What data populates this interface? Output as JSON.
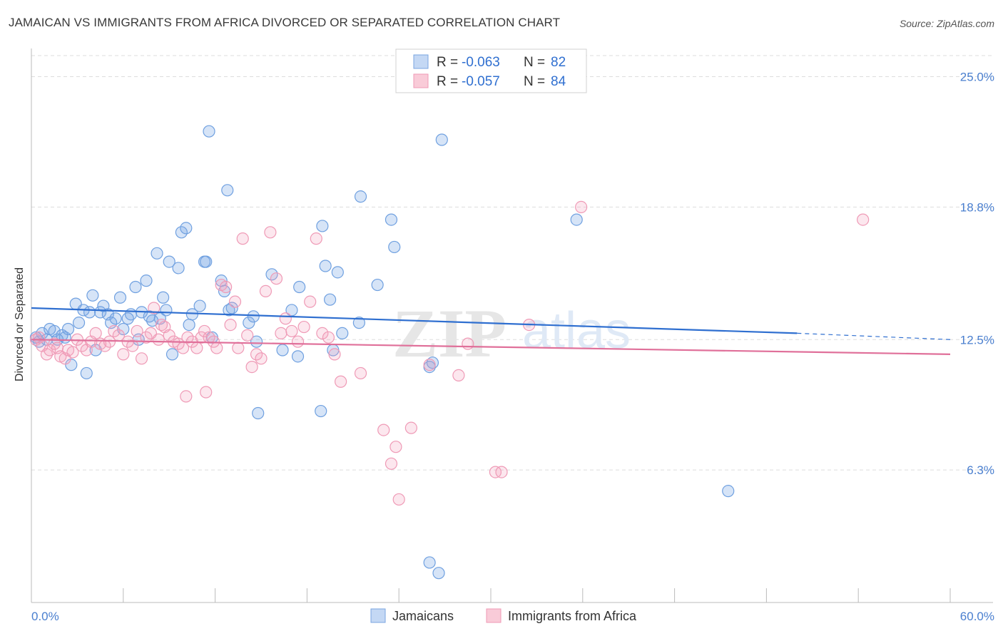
{
  "title": "JAMAICAN VS IMMIGRANTS FROM AFRICA DIVORCED OR SEPARATED CORRELATION CHART",
  "source": "Source: ZipAtlas.com",
  "watermark": {
    "zip": "ZIP",
    "atlas": "atlas"
  },
  "colors": {
    "blue": "#6fa0e0",
    "blue_line": "#2f6fd0",
    "pink": "#f0a0bb",
    "pink_line": "#e0709a",
    "grid": "#dddddd"
  },
  "legend": {
    "rows": [
      {
        "r_label": "R = ",
        "r_value": "-0.063",
        "n_label": "N = ",
        "n_value": "82"
      },
      {
        "r_label": "R = ",
        "r_value": "-0.057",
        "n_label": "N = ",
        "n_value": "84"
      }
    ]
  },
  "chart_data": {
    "type": "scatter",
    "ylabel": "Divorced or Separated",
    "xlim": [
      0,
      60
    ],
    "ylim": [
      0,
      26
    ],
    "x_tick_labels": {
      "min": "0.0%",
      "max": "60.0%"
    },
    "y_ticks": [
      {
        "value": 6.3,
        "label": "6.3%"
      },
      {
        "value": 12.5,
        "label": "12.5%"
      },
      {
        "value": 18.8,
        "label": "18.8%"
      },
      {
        "value": 25.0,
        "label": "25.0%"
      }
    ],
    "legend_position": "top-center",
    "grid": true,
    "series": [
      {
        "name": "Jamaicans",
        "color": "#6fa0e0",
        "trend": {
          "x0": 0,
          "y0": 14.0,
          "x1": 50,
          "y1": 12.8,
          "dash_to_x": 60,
          "dash_to_y": 12.5
        },
        "points": [
          [
            0.3,
            12.6
          ],
          [
            0.5,
            12.4
          ],
          [
            0.7,
            12.8
          ],
          [
            1.0,
            12.5
          ],
          [
            1.2,
            13.0
          ],
          [
            1.5,
            12.9
          ],
          [
            1.7,
            12.5
          ],
          [
            2.0,
            12.7
          ],
          [
            2.2,
            12.6
          ],
          [
            2.4,
            13.0
          ],
          [
            2.6,
            11.3
          ],
          [
            2.9,
            14.2
          ],
          [
            3.1,
            13.3
          ],
          [
            3.4,
            13.9
          ],
          [
            3.6,
            10.9
          ],
          [
            3.8,
            13.8
          ],
          [
            4.0,
            14.6
          ],
          [
            4.2,
            12.0
          ],
          [
            4.5,
            13.8
          ],
          [
            4.7,
            14.1
          ],
          [
            5.0,
            13.7
          ],
          [
            5.2,
            13.3
          ],
          [
            5.5,
            13.5
          ],
          [
            5.8,
            14.5
          ],
          [
            6.0,
            13.0
          ],
          [
            6.3,
            13.5
          ],
          [
            6.5,
            13.7
          ],
          [
            6.8,
            15.0
          ],
          [
            7.0,
            12.5
          ],
          [
            7.2,
            13.8
          ],
          [
            7.5,
            15.3
          ],
          [
            7.7,
            13.6
          ],
          [
            7.9,
            13.4
          ],
          [
            8.2,
            16.6
          ],
          [
            8.4,
            13.5
          ],
          [
            8.6,
            14.5
          ],
          [
            8.8,
            13.9
          ],
          [
            9.0,
            16.2
          ],
          [
            9.2,
            11.8
          ],
          [
            9.6,
            15.9
          ],
          [
            9.8,
            17.6
          ],
          [
            10.1,
            17.8
          ],
          [
            10.3,
            13.2
          ],
          [
            10.5,
            13.7
          ],
          [
            11.0,
            14.1
          ],
          [
            11.3,
            16.2
          ],
          [
            11.4,
            16.2
          ],
          [
            11.6,
            22.4
          ],
          [
            11.8,
            12.6
          ],
          [
            12.4,
            15.3
          ],
          [
            12.6,
            14.8
          ],
          [
            12.8,
            19.6
          ],
          [
            12.9,
            13.9
          ],
          [
            13.1,
            14.0
          ],
          [
            14.2,
            13.3
          ],
          [
            14.5,
            13.6
          ],
          [
            14.7,
            12.4
          ],
          [
            14.8,
            9.0
          ],
          [
            15.7,
            15.6
          ],
          [
            16.4,
            12.0
          ],
          [
            17.0,
            13.9
          ],
          [
            17.4,
            11.7
          ],
          [
            17.5,
            15.0
          ],
          [
            18.9,
            9.1
          ],
          [
            19.0,
            17.9
          ],
          [
            19.2,
            16.0
          ],
          [
            19.5,
            14.4
          ],
          [
            19.7,
            12.0
          ],
          [
            20.0,
            15.7
          ],
          [
            20.3,
            12.8
          ],
          [
            21.4,
            13.3
          ],
          [
            21.5,
            19.3
          ],
          [
            22.6,
            15.1
          ],
          [
            23.5,
            18.2
          ],
          [
            23.7,
            16.9
          ],
          [
            26.0,
            1.9
          ],
          [
            26.0,
            11.2
          ],
          [
            26.6,
            1.4
          ],
          [
            26.8,
            22.0
          ],
          [
            35.6,
            18.2
          ],
          [
            45.5,
            5.3
          ],
          [
            26.2,
            11.4
          ]
        ]
      },
      {
        "name": "Immigrants from Africa",
        "color": "#f0a0bb",
        "trend": {
          "x0": 0,
          "y0": 12.5,
          "x1": 60,
          "y1": 11.8
        },
        "points": [
          [
            0.3,
            12.5
          ],
          [
            0.5,
            12.6
          ],
          [
            0.7,
            12.2
          ],
          [
            1.0,
            11.8
          ],
          [
            1.2,
            12.0
          ],
          [
            1.5,
            12.3
          ],
          [
            1.7,
            12.1
          ],
          [
            1.9,
            11.7
          ],
          [
            2.2,
            11.6
          ],
          [
            2.4,
            12.0
          ],
          [
            2.7,
            11.9
          ],
          [
            3.0,
            12.5
          ],
          [
            3.3,
            12.2
          ],
          [
            3.6,
            12.0
          ],
          [
            3.9,
            12.4
          ],
          [
            4.2,
            12.8
          ],
          [
            4.5,
            12.3
          ],
          [
            4.8,
            12.2
          ],
          [
            5.1,
            12.4
          ],
          [
            5.4,
            12.9
          ],
          [
            5.7,
            12.7
          ],
          [
            6.0,
            11.8
          ],
          [
            6.3,
            12.4
          ],
          [
            6.6,
            12.2
          ],
          [
            6.9,
            12.9
          ],
          [
            7.2,
            11.6
          ],
          [
            7.5,
            12.6
          ],
          [
            7.8,
            12.8
          ],
          [
            8.0,
            14.0
          ],
          [
            8.3,
            12.5
          ],
          [
            8.5,
            13.2
          ],
          [
            8.7,
            13.1
          ],
          [
            9.0,
            12.7
          ],
          [
            9.3,
            12.4
          ],
          [
            9.6,
            12.3
          ],
          [
            9.9,
            12.1
          ],
          [
            10.2,
            12.6
          ],
          [
            10.5,
            12.4
          ],
          [
            10.8,
            12.1
          ],
          [
            11.1,
            12.6
          ],
          [
            11.3,
            12.9
          ],
          [
            11.6,
            12.6
          ],
          [
            11.9,
            12.4
          ],
          [
            12.1,
            12.1
          ],
          [
            12.4,
            15.1
          ],
          [
            12.7,
            15.0
          ],
          [
            13.0,
            13.2
          ],
          [
            13.3,
            14.3
          ],
          [
            13.5,
            12.1
          ],
          [
            13.8,
            17.3
          ],
          [
            14.1,
            12.7
          ],
          [
            14.4,
            11.2
          ],
          [
            14.7,
            11.8
          ],
          [
            15.0,
            11.6
          ],
          [
            15.3,
            14.8
          ],
          [
            15.6,
            17.6
          ],
          [
            16.0,
            15.4
          ],
          [
            16.3,
            12.8
          ],
          [
            16.6,
            13.5
          ],
          [
            17.0,
            12.9
          ],
          [
            17.4,
            12.4
          ],
          [
            17.8,
            13.1
          ],
          [
            18.2,
            14.3
          ],
          [
            18.6,
            17.3
          ],
          [
            19.0,
            12.8
          ],
          [
            19.4,
            12.6
          ],
          [
            19.8,
            11.8
          ],
          [
            20.2,
            10.5
          ],
          [
            21.5,
            10.9
          ],
          [
            23.0,
            8.2
          ],
          [
            23.5,
            6.6
          ],
          [
            23.8,
            7.4
          ],
          [
            24.0,
            4.9
          ],
          [
            24.8,
            8.3
          ],
          [
            26.0,
            11.3
          ],
          [
            27.9,
            10.8
          ],
          [
            28.5,
            12.3
          ],
          [
            30.3,
            6.2
          ],
          [
            30.7,
            6.2
          ],
          [
            32.5,
            13.2
          ],
          [
            35.9,
            18.8
          ],
          [
            54.3,
            18.2
          ],
          [
            10.1,
            9.8
          ],
          [
            11.4,
            10.0
          ]
        ]
      }
    ]
  }
}
